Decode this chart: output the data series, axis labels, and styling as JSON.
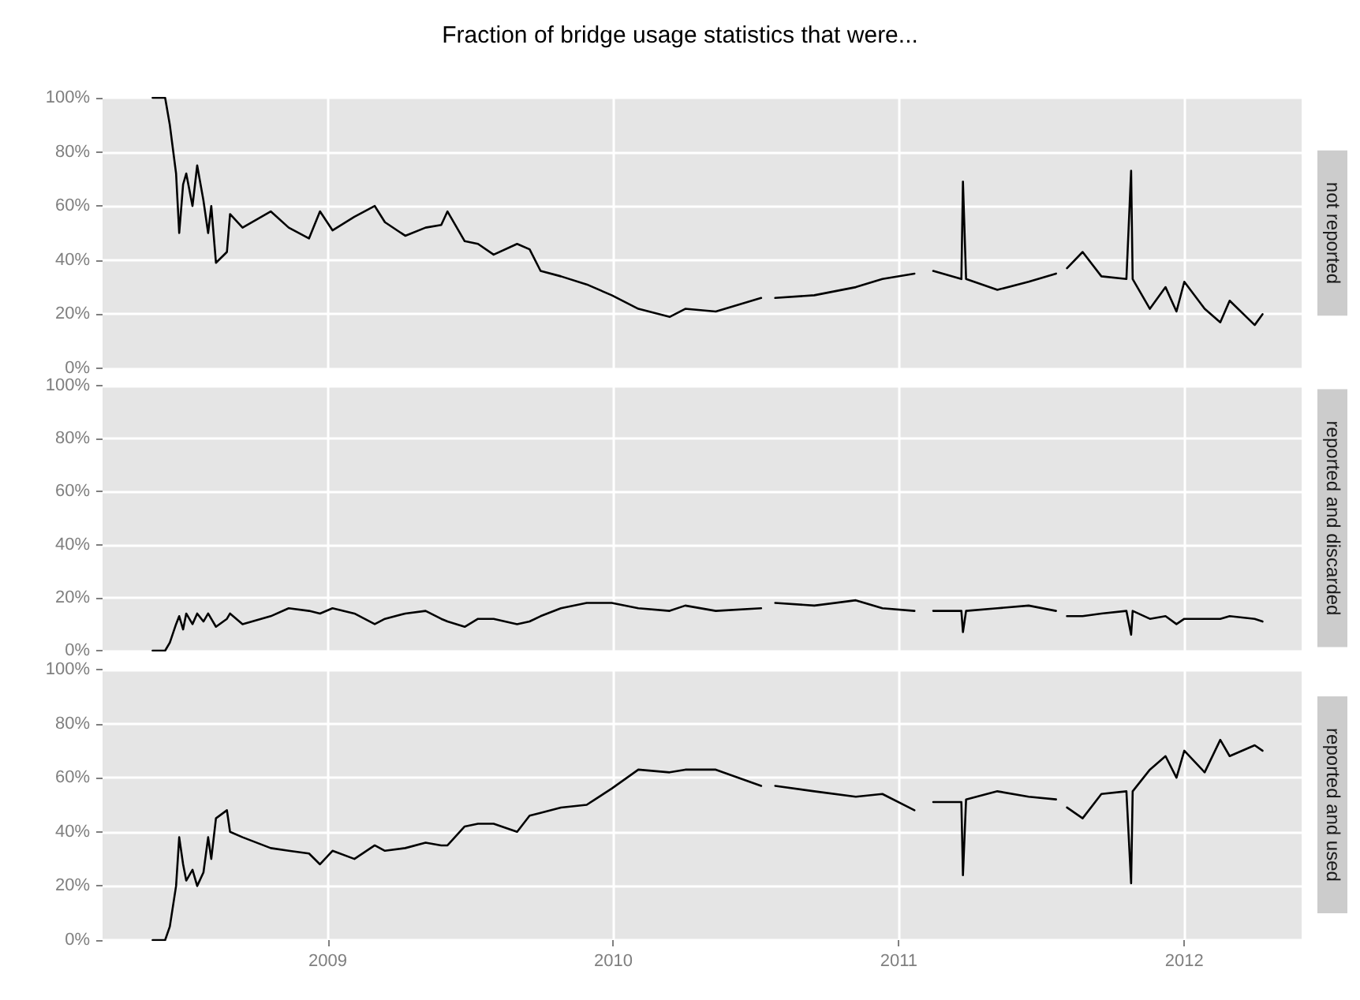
{
  "chart_data": [
    {
      "type": "line",
      "title": "Fraction of bridge usage statistics that were...",
      "y2label": "not reported",
      "tick_labels": "y",
      "grid": true,
      "marker": "none",
      "line_style": "solid",
      "x": [
        "2008-05-22",
        "2008-06-07",
        "2008-06-13",
        "2008-06-21",
        "2008-06-25",
        "2008-06-30",
        "2008-07-04",
        "2008-07-12",
        "2008-07-18",
        "2008-07-26",
        "2008-08-01",
        "2008-08-05",
        "2008-08-11",
        "2008-08-25",
        "2008-08-29",
        "2008-09-14",
        "2008-10-20",
        "2008-11-12",
        "2008-12-08",
        "2008-12-22",
        "2009-01-07",
        "2009-02-04",
        "2009-03-02",
        "2009-03-15",
        "2009-04-10",
        "2009-05-06",
        "2009-05-26",
        "2009-06-03",
        "2009-06-25",
        "2009-07-12",
        "2009-08-01",
        "2009-08-31",
        "2009-09-16",
        "2009-09-30",
        "2009-10-26",
        "2009-11-28",
        "2009-12-30",
        "2010-02-02",
        "2010-03-14",
        "2010-04-03",
        "2010-05-12",
        "2010-07-09",
        "2010-07-18",
        "2010-07-27",
        "2010-09-15",
        "2010-11-07",
        "2010-12-11",
        "2011-01-21",
        "2011-02-02",
        "2011-02-14",
        "2011-03-22",
        "2011-03-24",
        "2011-03-28",
        "2011-05-07",
        "2011-06-16",
        "2011-07-21",
        "2011-07-28",
        "2011-08-04",
        "2011-08-24",
        "2011-09-17",
        "2011-10-19",
        "2011-10-25",
        "2011-10-27",
        "2011-11-18",
        "2011-12-08",
        "2011-12-22",
        "2012-01-01",
        "2012-01-27",
        "2012-02-16",
        "2012-02-28",
        "2012-03-31",
        "2012-04-10"
      ],
      "xlim": [
        "2008-03-19",
        "2012-05-30"
      ],
      "xticks": [
        {
          "value": "2009-01-01",
          "label": null
        },
        {
          "value": "2010-01-01",
          "label": null
        },
        {
          "value": "2011-01-01",
          "label": null
        },
        {
          "value": "2012-01-01",
          "label": null
        }
      ],
      "ylim": [
        0,
        100
      ],
      "yticks": [
        {
          "value": 0,
          "label": "0%"
        },
        {
          "value": 20,
          "label": "20%"
        },
        {
          "value": 40,
          "label": "40%"
        },
        {
          "value": 60,
          "label": "60%"
        },
        {
          "value": 80,
          "label": "80%"
        },
        {
          "value": 100,
          "label": "100%"
        }
      ],
      "series": [
        {
          "color": "#000000",
          "values": [
            100,
            100,
            90,
            72,
            50,
            68,
            72,
            60,
            75,
            62,
            50,
            60,
            39,
            43,
            57,
            52,
            58,
            52,
            48,
            58,
            51,
            56,
            60,
            54,
            49,
            52,
            53,
            58,
            47,
            46,
            42,
            46,
            44,
            36,
            34,
            31,
            27,
            22,
            19,
            22,
            21,
            26,
            null,
            26,
            27,
            30,
            33,
            35,
            null,
            36,
            33,
            69,
            33,
            29,
            32,
            35,
            null,
            37,
            43,
            34,
            33,
            73,
            33,
            22,
            30,
            21,
            32,
            22,
            17,
            25,
            16,
            20
          ]
        }
      ]
    },
    {
      "type": "line",
      "y2label": "reported and discarded",
      "tick_labels": "y",
      "grid": true,
      "marker": "none",
      "line_style": "solid",
      "x": [
        "2008-05-22",
        "2008-06-07",
        "2008-06-13",
        "2008-06-21",
        "2008-06-25",
        "2008-06-30",
        "2008-07-04",
        "2008-07-12",
        "2008-07-18",
        "2008-07-26",
        "2008-08-01",
        "2008-08-05",
        "2008-08-11",
        "2008-08-25",
        "2008-08-29",
        "2008-09-14",
        "2008-10-20",
        "2008-11-12",
        "2008-12-08",
        "2008-12-22",
        "2009-01-07",
        "2009-02-04",
        "2009-03-02",
        "2009-03-15",
        "2009-04-10",
        "2009-05-06",
        "2009-05-26",
        "2009-06-03",
        "2009-06-25",
        "2009-07-12",
        "2009-08-01",
        "2009-08-31",
        "2009-09-16",
        "2009-09-30",
        "2009-10-26",
        "2009-11-28",
        "2009-12-30",
        "2010-02-02",
        "2010-03-14",
        "2010-04-03",
        "2010-05-12",
        "2010-07-09",
        "2010-07-18",
        "2010-07-27",
        "2010-09-15",
        "2010-11-07",
        "2010-12-11",
        "2011-01-21",
        "2011-02-02",
        "2011-02-14",
        "2011-03-22",
        "2011-03-24",
        "2011-03-28",
        "2011-05-07",
        "2011-06-16",
        "2011-07-21",
        "2011-07-28",
        "2011-08-04",
        "2011-08-24",
        "2011-09-17",
        "2011-10-19",
        "2011-10-25",
        "2011-10-27",
        "2011-11-18",
        "2011-12-08",
        "2011-12-22",
        "2012-01-01",
        "2012-01-27",
        "2012-02-16",
        "2012-02-28",
        "2012-03-31",
        "2012-04-10"
      ],
      "xlim": [
        "2008-03-19",
        "2012-05-30"
      ],
      "xticks": [
        {
          "value": "2009-01-01",
          "label": null
        },
        {
          "value": "2010-01-01",
          "label": null
        },
        {
          "value": "2011-01-01",
          "label": null
        },
        {
          "value": "2012-01-01",
          "label": null
        }
      ],
      "ylim": [
        0,
        100
      ],
      "yticks": [
        {
          "value": 0,
          "label": "0%"
        },
        {
          "value": 20,
          "label": "20%"
        },
        {
          "value": 40,
          "label": "40%"
        },
        {
          "value": 60,
          "label": "60%"
        },
        {
          "value": 80,
          "label": "80%"
        },
        {
          "value": 100,
          "label": "100%"
        }
      ],
      "series": [
        {
          "color": "#000000",
          "values": [
            0,
            0,
            3,
            10,
            13,
            8,
            14,
            10,
            14,
            11,
            14,
            12,
            9,
            12,
            14,
            10,
            13,
            16,
            15,
            14,
            16,
            14,
            10,
            12,
            14,
            15,
            12,
            11,
            9,
            12,
            12,
            10,
            11,
            13,
            16,
            18,
            18,
            16,
            15,
            17,
            15,
            16,
            null,
            18,
            17,
            19,
            16,
            15,
            null,
            15,
            15,
            7,
            15,
            16,
            17,
            15,
            null,
            13,
            13,
            14,
            15,
            6,
            15,
            12,
            13,
            10,
            12,
            12,
            12,
            13,
            12,
            11
          ]
        }
      ]
    },
    {
      "type": "line",
      "y2label": "reported and used",
      "grid": true,
      "marker": "none",
      "line_style": "solid",
      "x": [
        "2008-05-22",
        "2008-06-07",
        "2008-06-13",
        "2008-06-21",
        "2008-06-25",
        "2008-06-30",
        "2008-07-04",
        "2008-07-12",
        "2008-07-18",
        "2008-07-26",
        "2008-08-01",
        "2008-08-05",
        "2008-08-11",
        "2008-08-25",
        "2008-08-29",
        "2008-09-14",
        "2008-10-20",
        "2008-11-12",
        "2008-12-08",
        "2008-12-22",
        "2009-01-07",
        "2009-02-04",
        "2009-03-02",
        "2009-03-15",
        "2009-04-10",
        "2009-05-06",
        "2009-05-26",
        "2009-06-03",
        "2009-06-25",
        "2009-07-12",
        "2009-08-01",
        "2009-08-31",
        "2009-09-16",
        "2009-09-30",
        "2009-10-26",
        "2009-11-28",
        "2009-12-30",
        "2010-02-02",
        "2010-03-14",
        "2010-04-03",
        "2010-05-12",
        "2010-07-09",
        "2010-07-18",
        "2010-07-27",
        "2010-09-15",
        "2010-11-07",
        "2010-12-11",
        "2011-01-21",
        "2011-02-02",
        "2011-02-14",
        "2011-03-22",
        "2011-03-24",
        "2011-03-28",
        "2011-05-07",
        "2011-06-16",
        "2011-07-21",
        "2011-07-28",
        "2011-08-04",
        "2011-08-24",
        "2011-09-17",
        "2011-10-19",
        "2011-10-25",
        "2011-10-27",
        "2011-11-18",
        "2011-12-08",
        "2011-12-22",
        "2012-01-01",
        "2012-01-27",
        "2012-02-16",
        "2012-02-28",
        "2012-03-31",
        "2012-04-10"
      ],
      "xlim": [
        "2008-03-19",
        "2012-05-30"
      ],
      "xticks": [
        {
          "value": "2009-01-01",
          "label": "2009"
        },
        {
          "value": "2010-01-01",
          "label": "2010"
        },
        {
          "value": "2011-01-01",
          "label": "2011"
        },
        {
          "value": "2012-01-01",
          "label": "2012"
        }
      ],
      "ylim": [
        0,
        100
      ],
      "yticks": [
        {
          "value": 0,
          "label": "0%"
        },
        {
          "value": 20,
          "label": "20%"
        },
        {
          "value": 40,
          "label": "40%"
        },
        {
          "value": 60,
          "label": "60%"
        },
        {
          "value": 80,
          "label": "80%"
        },
        {
          "value": 100,
          "label": "100%"
        }
      ],
      "series": [
        {
          "color": "#000000",
          "values": [
            0,
            0,
            5,
            20,
            38,
            28,
            22,
            26,
            20,
            25,
            38,
            30,
            45,
            48,
            40,
            38,
            34,
            33,
            32,
            28,
            33,
            30,
            35,
            33,
            34,
            36,
            35,
            35,
            42,
            43,
            43,
            40,
            46,
            47,
            49,
            50,
            56,
            63,
            62,
            63,
            63,
            57,
            null,
            57,
            55,
            53,
            54,
            48,
            null,
            51,
            51,
            24,
            52,
            55,
            53,
            52,
            null,
            49,
            45,
            54,
            55,
            21,
            55,
            63,
            68,
            60,
            70,
            62,
            74,
            68,
            72,
            70
          ]
        }
      ]
    }
  ]
}
